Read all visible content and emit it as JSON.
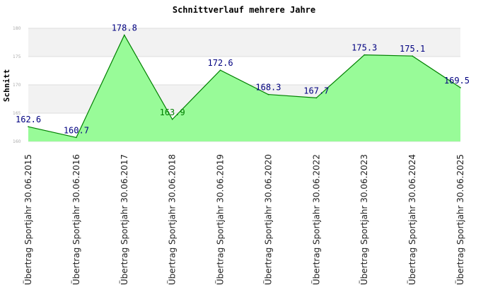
{
  "chart_data": {
    "type": "area",
    "title": "Schnittverlauf mehrere Jahre",
    "xlabel": "",
    "ylabel": "Schnitt",
    "ylim": [
      160,
      180
    ],
    "yticks": [
      "160",
      "165",
      "170",
      "175",
      "180"
    ],
    "grid": true,
    "legend": "none",
    "categories": [
      "Übertrag Sportjahr 30.06.2015",
      "Übertrag Sportjahr 30.06.2016",
      "Übertrag Sportjahr 30.06.2017",
      "Übertrag Sportjahr 30.06.2018",
      "Übertrag Sportjahr 30.06.2019",
      "Übertrag Sportjahr 30.06.2020",
      "Übertrag Sportjahr 30.06.2022",
      "Übertrag Sportjahr 30.06.2023",
      "Übertrag Sportjahr 30.06.2024",
      "Übertrag Sportjahr 30.06.2025"
    ],
    "series": [
      {
        "values": [
          162.6,
          160.7,
          178.8,
          163.9,
          172.6,
          168.3,
          167.7,
          175.3,
          175.1,
          169.5
        ],
        "labels": [
          "162.6",
          "160.7",
          "178.8",
          "163.9",
          "172.6",
          "168.3",
          "167.7",
          "175.3",
          "175.1",
          "169.5"
        ]
      }
    ],
    "colors": {
      "fill": "#98fb98",
      "line": "#008000",
      "label": "#000080",
      "label_inside": "#008000",
      "band_alt": "#f2f2f2",
      "gridline": "#dddddd"
    }
  }
}
